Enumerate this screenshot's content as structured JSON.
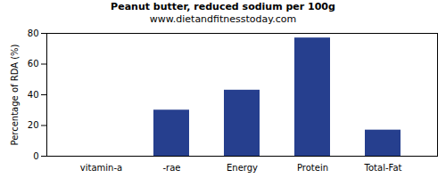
{
  "chart_data": {
    "type": "bar",
    "title": "Peanut butter, reduced sodium per 100g",
    "subtitle": "www.dietandfitnesstoday.com",
    "y_label": "Percentage of RDA (%)",
    "categories": [
      "vitamin-a",
      "-rae",
      "Energy",
      "Protein",
      "Total-Fat"
    ],
    "values": [
      0,
      30,
      43,
      77,
      17
    ],
    "color": "#263f8e",
    "ylim": [
      0,
      80
    ],
    "yticks": [
      0,
      20,
      40,
      60,
      80
    ],
    "grid": false
  }
}
